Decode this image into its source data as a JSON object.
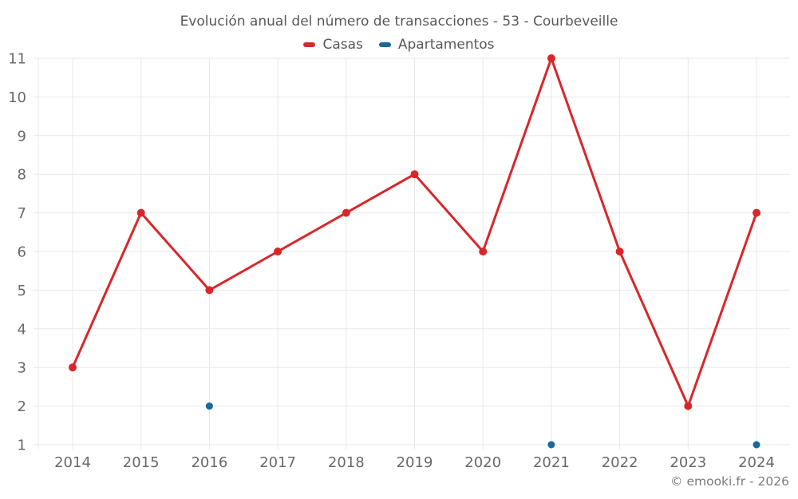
{
  "page": {
    "background": "#ffffff"
  },
  "chart_data": {
    "type": "line",
    "title": "Evolución anual del número de transacciones - 53 - Courbeveille",
    "categories": [
      "2014",
      "2015",
      "2016",
      "2017",
      "2018",
      "2019",
      "2020",
      "2021",
      "2022",
      "2023",
      "2024"
    ],
    "series": [
      {
        "name": "Casas",
        "color": "#d9262b",
        "line": true,
        "line_width": 3,
        "marker_radius": 5,
        "values": [
          3,
          7,
          5,
          6,
          7,
          8,
          6,
          11,
          6,
          2,
          7
        ]
      },
      {
        "name": "Apartamentos",
        "color": "#17699c",
        "line": false,
        "line_width": 0,
        "marker_radius": 4.5,
        "values": [
          null,
          null,
          2,
          null,
          null,
          null,
          null,
          1,
          null,
          null,
          1
        ]
      }
    ],
    "xlabel": "",
    "ylabel": "",
    "ylim": [
      1,
      11
    ],
    "yticks": [
      1,
      2,
      3,
      4,
      5,
      6,
      7,
      8,
      9,
      10,
      11
    ],
    "grid": true,
    "legend_position": "top"
  },
  "footer": {
    "credit": "© emooki.fr - 2026"
  },
  "colors": {
    "grid": "#e8e8e8",
    "tick_label": "#69696b",
    "title_text": "#58585a",
    "footer_text": "#7a7a7a"
  }
}
